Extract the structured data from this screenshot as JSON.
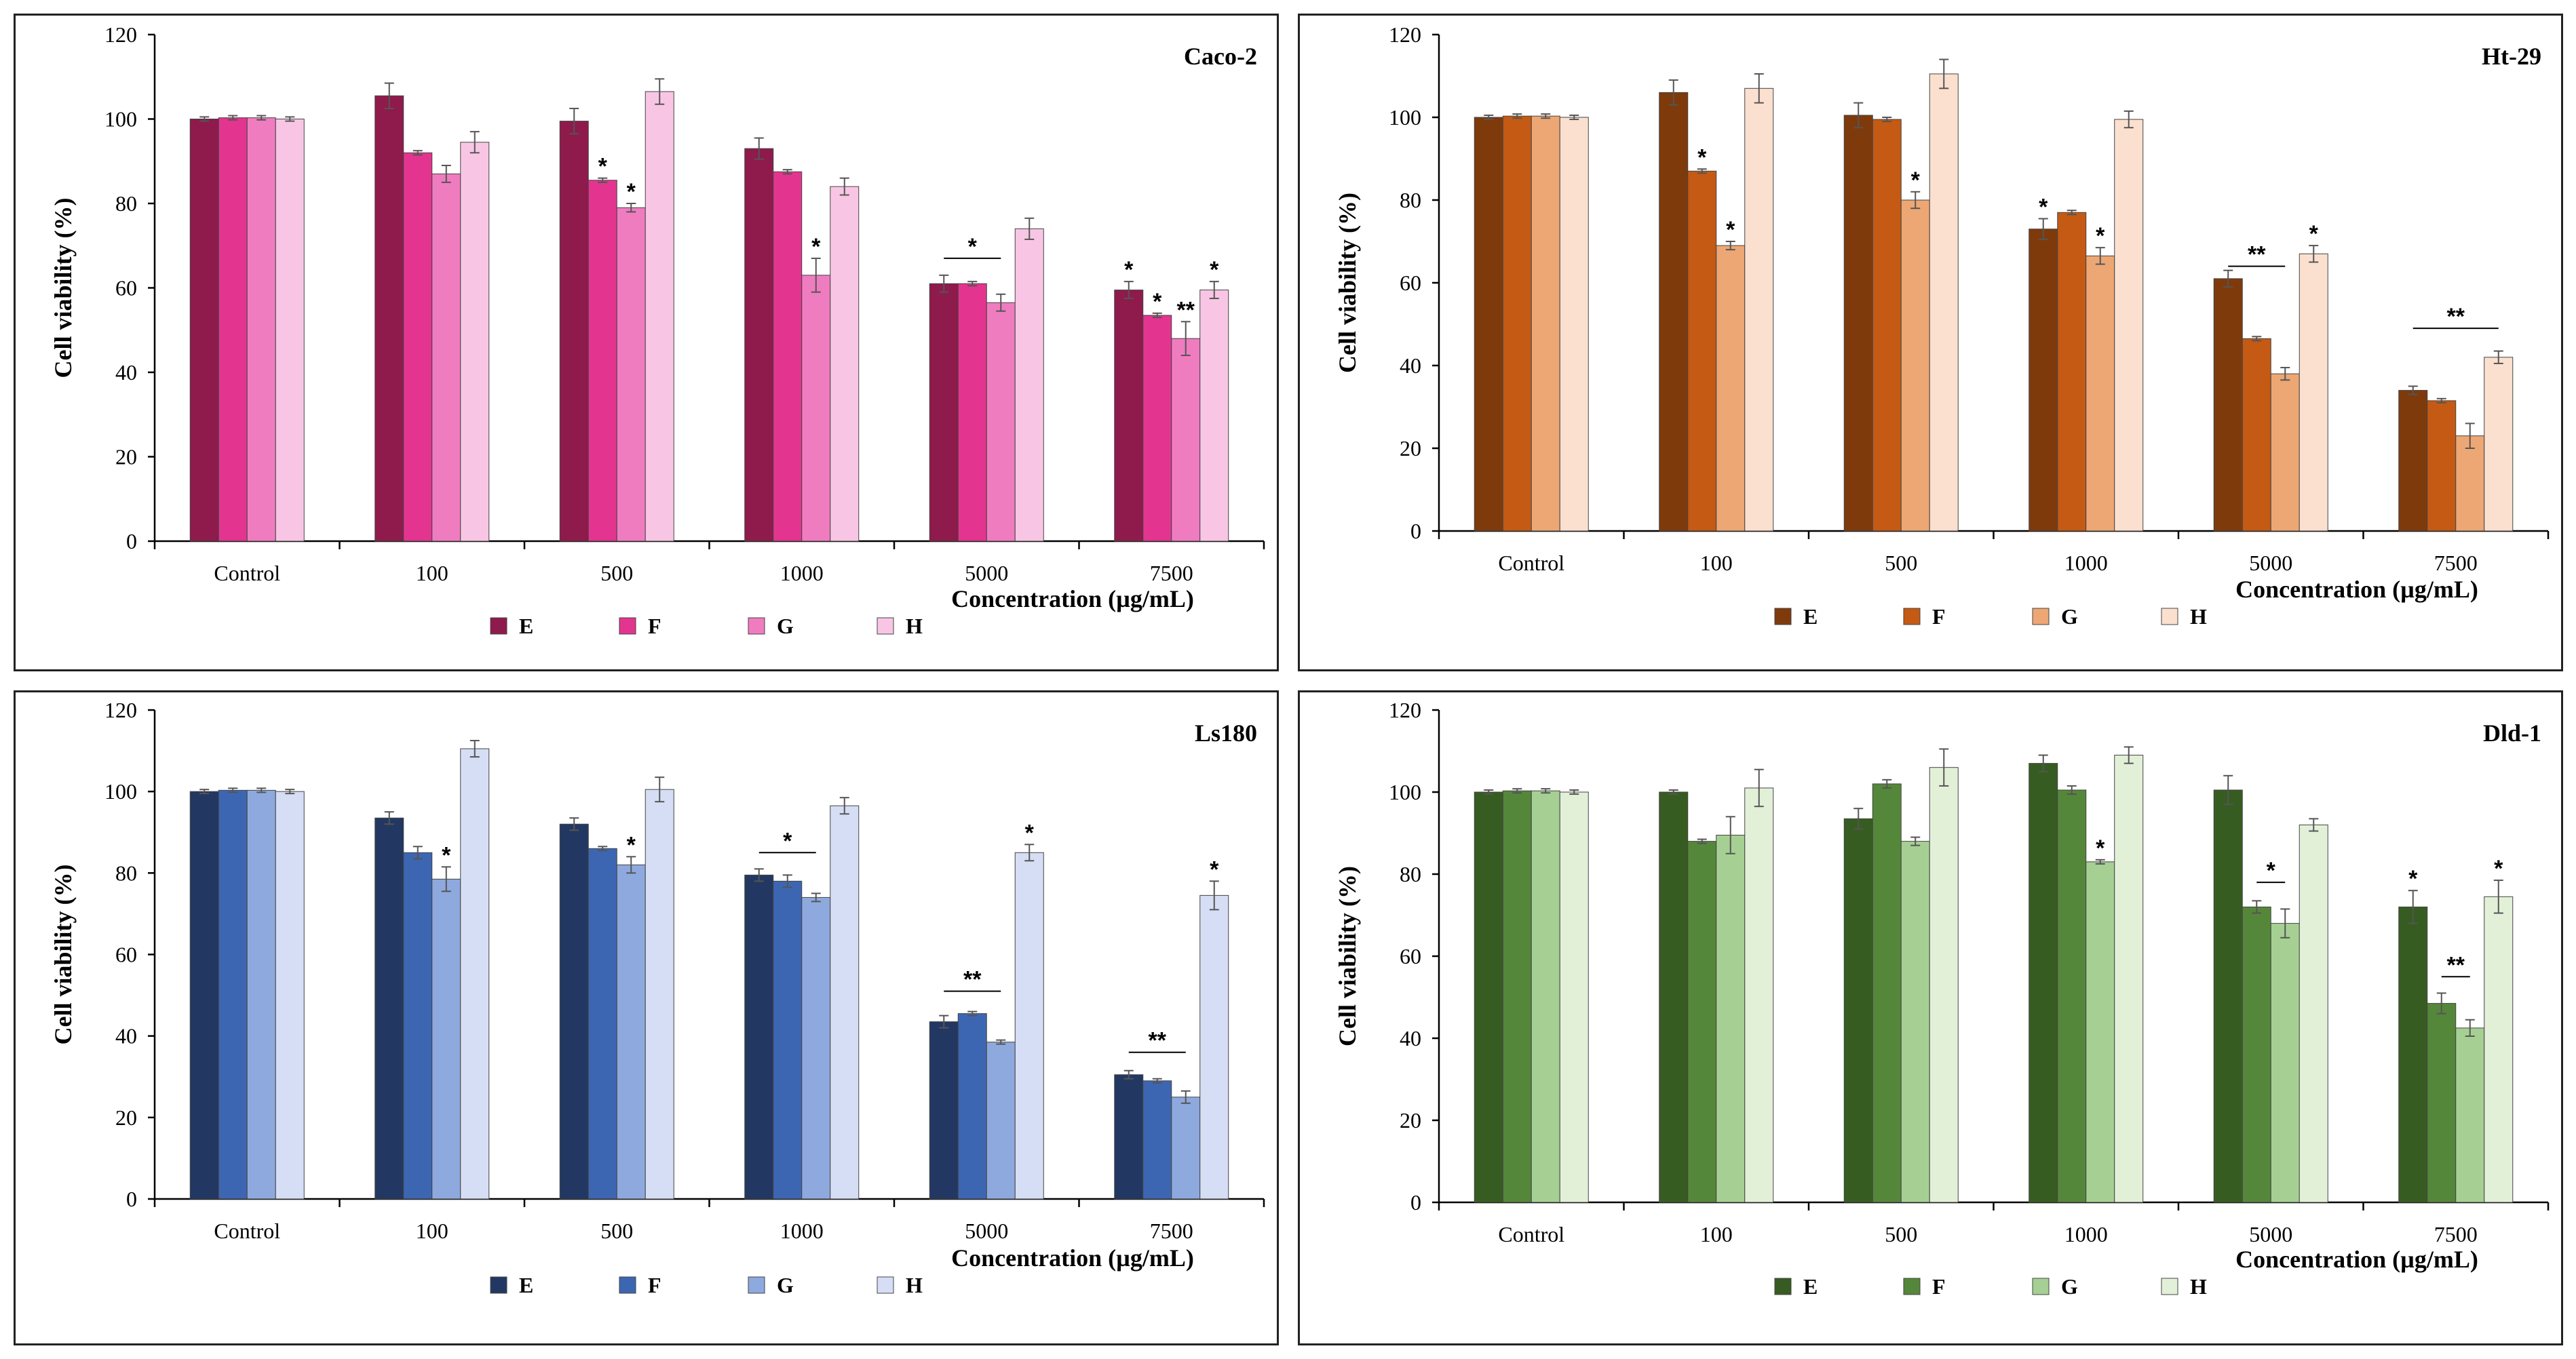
{
  "chart_data": [
    {
      "type": "bar",
      "title": "Caco-2",
      "xlabel": "Concentration (µg/mL)",
      "ylabel": "Cell viability (%)",
      "ylim": [
        0,
        120
      ],
      "yticks": [
        "0",
        "20",
        "40",
        "60",
        "80",
        "100",
        "120"
      ],
      "categories": [
        "Control",
        "100",
        "500",
        "1000",
        "5000",
        "7500"
      ],
      "legend_position": "bottom",
      "series": [
        {
          "name": "E",
          "color": "#8f1a4c",
          "values": [
            100,
            105.5,
            99.5,
            93,
            61,
            59.5
          ],
          "errors": [
            0.5,
            3,
            3,
            2.5,
            2,
            2
          ]
        },
        {
          "name": "F",
          "color": "#e3358f",
          "values": [
            100.3,
            92,
            85.5,
            87.5,
            61,
            53.5
          ],
          "errors": [
            0.5,
            0.5,
            0.5,
            0.5,
            0.5,
            0.5
          ]
        },
        {
          "name": "G",
          "color": "#f07cc0",
          "values": [
            100.3,
            87,
            79,
            63,
            56.5,
            48
          ],
          "errors": [
            0.5,
            2,
            1,
            4,
            2,
            4
          ]
        },
        {
          "name": "H",
          "color": "#f8c6e4",
          "values": [
            100,
            94.5,
            106.5,
            84,
            74,
            59.5
          ],
          "errors": [
            0.5,
            2.5,
            3,
            2,
            2.5,
            2
          ]
        }
      ],
      "annotations": [
        {
          "text": "*",
          "category": 2,
          "series": 1
        },
        {
          "text": "*",
          "category": 2,
          "series": 2
        },
        {
          "text": "*",
          "category": 3,
          "series": 2
        },
        {
          "text": "*",
          "category": 4,
          "span": [
            0,
            2
          ],
          "y": 67
        },
        {
          "text": "*",
          "category": 5,
          "series": 0
        },
        {
          "text": "*",
          "category": 5,
          "series": 1
        },
        {
          "text": "**",
          "category": 5,
          "series": 2
        },
        {
          "text": "*",
          "category": 5,
          "series": 3
        }
      ]
    },
    {
      "type": "bar",
      "title": "Ht-29",
      "xlabel": "Concentration (µg/mL)",
      "ylabel": "Cell viability (%)",
      "ylim": [
        0,
        120
      ],
      "yticks": [
        "0",
        "20",
        "40",
        "60",
        "80",
        "100",
        "120"
      ],
      "categories": [
        "Control",
        "100",
        "500",
        "1000",
        "5000",
        "7500"
      ],
      "legend_position": "bottom",
      "series": [
        {
          "name": "E",
          "color": "#7f3a0c",
          "values": [
            100,
            106,
            100.5,
            73,
            61,
            34
          ],
          "errors": [
            0.5,
            3,
            3,
            2.5,
            2,
            1
          ]
        },
        {
          "name": "F",
          "color": "#c45a14",
          "values": [
            100.3,
            87,
            99.5,
            77,
            46.5,
            31.5
          ],
          "errors": [
            0.5,
            0.5,
            0.5,
            0.5,
            0.5,
            0.5
          ]
        },
        {
          "name": "G",
          "color": "#eda774",
          "values": [
            100.3,
            69,
            80,
            66.5,
            38,
            23
          ],
          "errors": [
            0.5,
            1,
            2,
            2,
            1.5,
            3
          ]
        },
        {
          "name": "H",
          "color": "#fbe0cf",
          "values": [
            100,
            107,
            110.5,
            99.5,
            67,
            42
          ],
          "errors": [
            0.5,
            3.5,
            3.5,
            2,
            2,
            1.5
          ]
        }
      ],
      "annotations": [
        {
          "text": "*",
          "category": 1,
          "series": 1
        },
        {
          "text": "*",
          "category": 1,
          "series": 2
        },
        {
          "text": "*",
          "category": 2,
          "series": 2
        },
        {
          "text": "*",
          "category": 3,
          "series": 0
        },
        {
          "text": "*",
          "category": 3,
          "series": 2
        },
        {
          "text": "**",
          "category": 4,
          "span": [
            0,
            2
          ],
          "y": 64
        },
        {
          "text": "*",
          "category": 4,
          "series": 3
        },
        {
          "text": "**",
          "category": 5,
          "span": [
            0,
            3
          ],
          "y": 49
        }
      ]
    },
    {
      "type": "bar",
      "title": "Ls180",
      "xlabel": "Concentration (µg/mL)",
      "ylabel": "Cell viability (%)",
      "ylim": [
        0,
        120
      ],
      "yticks": [
        "0",
        "20",
        "40",
        "60",
        "80",
        "100",
        "120"
      ],
      "categories": [
        "Control",
        "100",
        "500",
        "1000",
        "5000",
        "7500"
      ],
      "legend_position": "bottom",
      "series": [
        {
          "name": "E",
          "color": "#223862",
          "values": [
            100,
            93.5,
            92,
            79.5,
            43.5,
            30.5
          ],
          "errors": [
            0.5,
            1.5,
            1.5,
            1.5,
            1.5,
            1
          ]
        },
        {
          "name": "F",
          "color": "#3d66b2",
          "values": [
            100.3,
            85,
            86,
            78,
            45.5,
            29
          ],
          "errors": [
            0.5,
            1.5,
            0.5,
            1.5,
            0.5,
            0.5
          ]
        },
        {
          "name": "G",
          "color": "#8ea9de",
          "values": [
            100.3,
            78.5,
            82,
            74,
            38.5,
            25
          ],
          "errors": [
            0.5,
            3,
            2,
            1,
            0.5,
            1.5
          ]
        },
        {
          "name": "H",
          "color": "#d6def5",
          "values": [
            100,
            110.5,
            100.5,
            96.5,
            85,
            74.5
          ],
          "errors": [
            0.5,
            2,
            3,
            2,
            2,
            3.5
          ]
        }
      ],
      "annotations": [
        {
          "text": "*",
          "category": 1,
          "series": 2
        },
        {
          "text": "*",
          "category": 2,
          "series": 2
        },
        {
          "text": "*",
          "category": 3,
          "span": [
            0,
            2
          ],
          "y": 85
        },
        {
          "text": "**",
          "category": 4,
          "span": [
            0,
            2
          ],
          "y": 51
        },
        {
          "text": "*",
          "category": 4,
          "series": 3
        },
        {
          "text": "**",
          "category": 5,
          "span": [
            0,
            2
          ],
          "y": 36
        },
        {
          "text": "*",
          "category": 5,
          "series": 3
        }
      ]
    },
    {
      "type": "bar",
      "title": "Dld-1",
      "xlabel": "Concentration (µg/mL)",
      "ylabel": "Cell viability (%)",
      "ylim": [
        0,
        120
      ],
      "yticks": [
        "0",
        "20",
        "40",
        "60",
        "80",
        "100",
        "120"
      ],
      "categories": [
        "Control",
        "100",
        "500",
        "1000",
        "5000",
        "7500"
      ],
      "legend_position": "bottom",
      "series": [
        {
          "name": "E",
          "color": "#375c21",
          "values": [
            100,
            100,
            93.5,
            107,
            100.5,
            72
          ],
          "errors": [
            0.5,
            0.5,
            2.5,
            2,
            3.5,
            4
          ]
        },
        {
          "name": "F",
          "color": "#55873a",
          "values": [
            100.3,
            88,
            102,
            100.5,
            72,
            48.5
          ],
          "errors": [
            0.5,
            0.5,
            1,
            1,
            1.5,
            2.5
          ]
        },
        {
          "name": "G",
          "color": "#a6d093",
          "values": [
            100.3,
            89.5,
            88,
            83,
            68,
            42.5
          ],
          "errors": [
            0.5,
            4.5,
            1,
            0.5,
            3.5,
            2
          ]
        },
        {
          "name": "H",
          "color": "#e3f0d8",
          "values": [
            100,
            101,
            106,
            109,
            92,
            74.5
          ],
          "errors": [
            0.5,
            4.5,
            4.5,
            2,
            1.5,
            4
          ]
        }
      ],
      "annotations": [
        {
          "text": "*",
          "category": 3,
          "series": 2
        },
        {
          "text": "*",
          "category": 4,
          "span": [
            1,
            2
          ],
          "y": 78
        },
        {
          "text": "*",
          "category": 5,
          "series": 0
        },
        {
          "text": "**",
          "category": 5,
          "span": [
            1,
            2
          ],
          "y": 55
        },
        {
          "text": "*",
          "category": 5,
          "series": 3
        }
      ]
    }
  ]
}
